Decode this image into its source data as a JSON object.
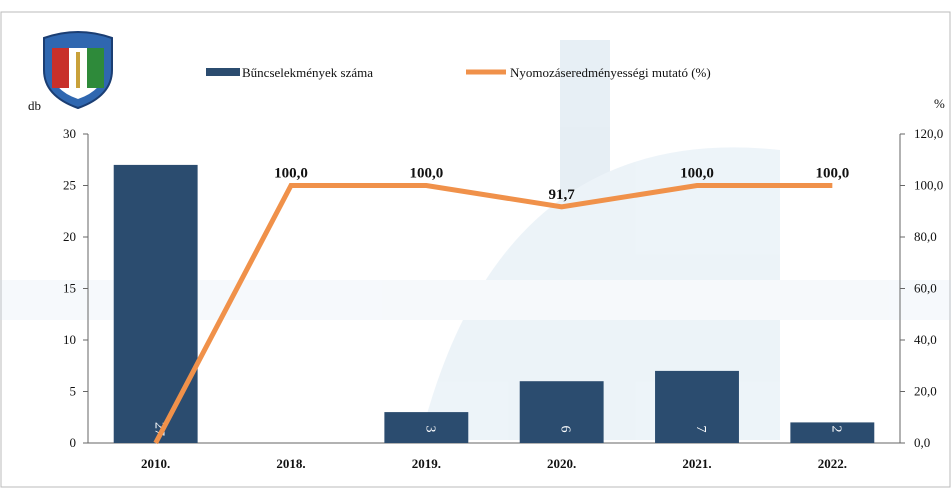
{
  "chart_data": {
    "type": "bar-line",
    "categories": [
      "2010.",
      "2018.",
      "2019.",
      "2020.",
      "2021.",
      "2022."
    ],
    "y_label": "db",
    "y2_label": "%",
    "ylim": [
      0,
      30
    ],
    "yticks": [
      0,
      5,
      10,
      15,
      20,
      25,
      30
    ],
    "y2lim": [
      0,
      120
    ],
    "y2ticks": [
      {
        "value": 0,
        "label": "0,0"
      },
      {
        "value": 20,
        "label": "20,0"
      },
      {
        "value": 40,
        "label": "40,0"
      },
      {
        "value": 60,
        "label": "60,0"
      },
      {
        "value": 80,
        "label": "80,0"
      },
      {
        "value": 100,
        "label": "100,0"
      },
      {
        "value": 120,
        "label": "120,0"
      }
    ],
    "legend": "top",
    "series": [
      {
        "name": "Bűncselekmények száma",
        "type": "bar",
        "color": "#2b4c6f",
        "values": [
          27,
          null,
          3,
          6,
          7,
          2
        ]
      },
      {
        "name": "Nyomozáseredményességi mutató (%)",
        "type": "line",
        "axis": "y2",
        "color": "#f0914a",
        "values": [
          0,
          100,
          100,
          91.7,
          100,
          100
        ],
        "value_labels": [
          null,
          "100,0",
          "100,0",
          "91,7",
          "100,0",
          "100,0"
        ]
      }
    ]
  }
}
